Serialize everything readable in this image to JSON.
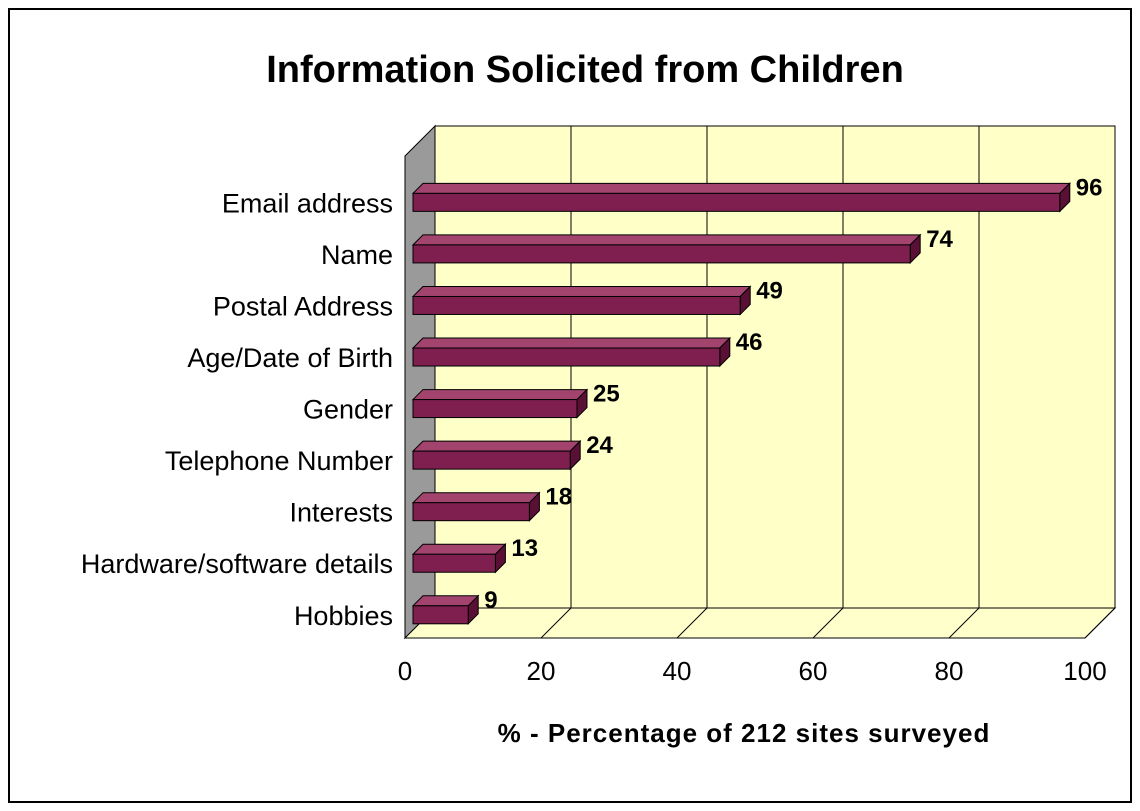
{
  "chart_data": {
    "type": "bar",
    "orientation": "horizontal",
    "title": "Information Solicited from Children",
    "xlabel": "% - Percentage of 212 sites surveyed",
    "ylabel": "",
    "categories": [
      "Email address",
      "Name",
      "Postal Address",
      "Age/Date of Birth",
      "Gender",
      "Telephone Number",
      "Interests",
      "Hardware/software details",
      "Hobbies"
    ],
    "values": [
      96,
      74,
      49,
      46,
      25,
      24,
      18,
      13,
      9
    ],
    "xlim": [
      0,
      100
    ],
    "xticks": [
      0,
      20,
      40,
      60,
      80,
      100
    ],
    "grid": true,
    "legend": "none",
    "style": "3d",
    "colors": {
      "bar_front": "#7e1f4f",
      "bar_top": "#a3446f",
      "bar_side": "#5a0f35",
      "plot_back": "#ffffc8",
      "wall_left": "#9a9a9a",
      "floor": "#ffffcc"
    }
  }
}
